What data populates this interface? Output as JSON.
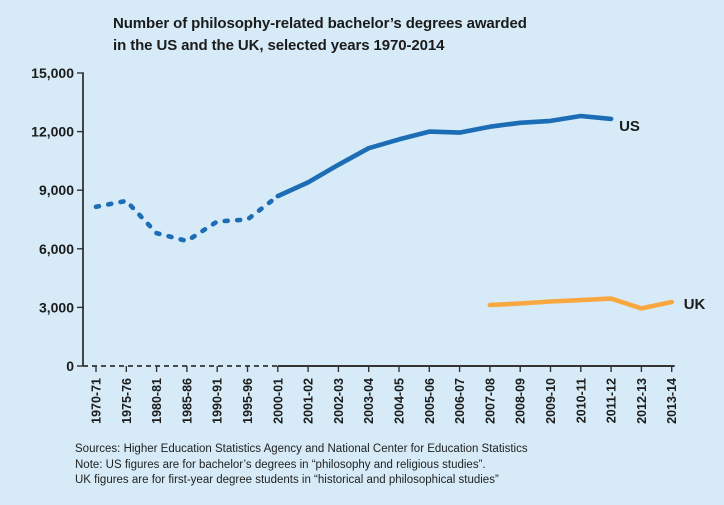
{
  "title": {
    "line1": "Number of philosophy-related bachelor’s degrees awarded",
    "line2": "in the US and the UK, selected years 1970-2014"
  },
  "footer": {
    "line1": "Sources: Higher Education Statistics Agency and National Center for Education Statistics",
    "line2": "Note: US figures are for bachelor’s degrees in “philosophy and religious studies”.",
    "line3": "UK figures are for first-year degree students in “historical and philosophical studies”"
  },
  "colors": {
    "background": "#D6EBF7",
    "us_line": "#1C6DB5",
    "uk_line": "#F9A841",
    "axis": "#333333",
    "text": "#1B1B1B"
  },
  "chart_data": {
    "type": "line",
    "title": "Number of philosophy-related bachelor’s degrees awarded in the US and the UK, selected years 1970-2014",
    "xlabel": "",
    "ylabel": "",
    "ylim": [
      0,
      15000
    ],
    "ytick_step": 3000,
    "ytick_labels": [
      "0",
      "3,000",
      "6,000",
      "9,000",
      "12,000",
      "15,000"
    ],
    "grid": false,
    "legend_position": "end-of-line-labels",
    "categories": [
      "1970-71",
      "1975-76",
      "1980-81",
      "1985-86",
      "1990-91",
      "1995-96",
      "2000-01",
      "2001-02",
      "2002-03",
      "2003-04",
      "2004-05",
      "2005-06",
      "2006-07",
      "2007-08",
      "2008-09",
      "2009-10",
      "2010-11",
      "2011-12",
      "2012-13",
      "2013-14"
    ],
    "axis_note": "x-axis and US line are dashed for the selected-years period 1970-71 through 2000-01, solid for annual data afterward",
    "series": [
      {
        "name": "US",
        "color": "#1C6DB5",
        "solid_from_category": "2000-01",
        "values": [
          8150,
          8450,
          6800,
          6400,
          7400,
          7500,
          8700,
          9400,
          10300,
          11150,
          11600,
          12000,
          11950,
          12250,
          12450,
          12550,
          12800,
          12650,
          null,
          null
        ]
      },
      {
        "name": "UK",
        "color": "#F9A841",
        "values": [
          null,
          null,
          null,
          null,
          null,
          null,
          null,
          null,
          null,
          null,
          null,
          null,
          null,
          3125,
          3200,
          3300,
          3375,
          3450,
          2950,
          3275
        ]
      }
    ]
  }
}
